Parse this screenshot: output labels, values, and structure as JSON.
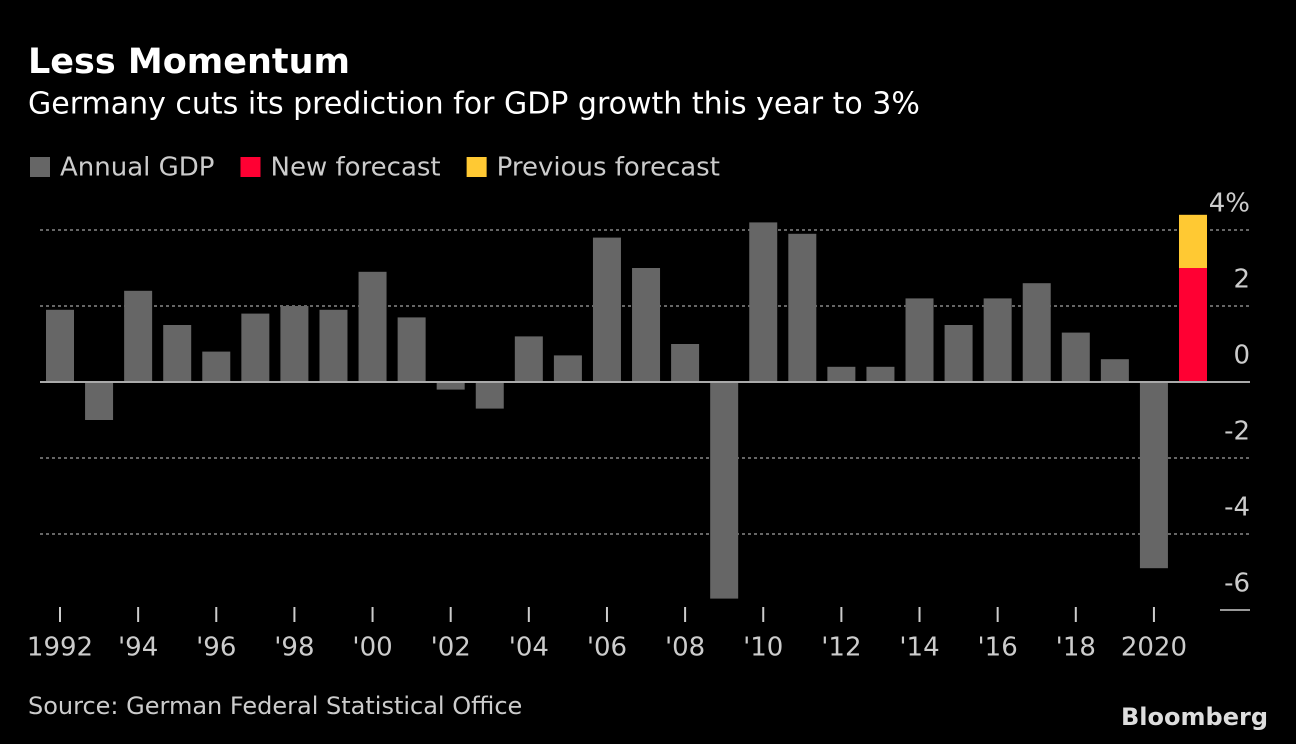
{
  "chart_data": {
    "type": "bar",
    "stacked": true,
    "title": "Less Momentum",
    "subtitle": "Germany cuts its prediction for GDP growth this year to 3%",
    "source": "Source: German Federal Statistical Office",
    "brand": "Bloomberg",
    "categories": [
      "1992",
      null,
      "'94",
      null,
      "'96",
      null,
      "'98",
      null,
      "'00",
      null,
      "'02",
      null,
      "'04",
      null,
      "'06",
      null,
      "'08",
      null,
      "'10",
      null,
      "'12",
      null,
      "'14",
      null,
      "'16",
      null,
      "'18",
      null,
      "2020",
      null
    ],
    "series": [
      {
        "name": "Annual GDP",
        "color": "#666666",
        "values": [
          1.9,
          -1.0,
          2.4,
          1.5,
          0.8,
          1.8,
          2.0,
          1.9,
          2.9,
          1.7,
          -0.2,
          -0.7,
          1.2,
          0.7,
          3.8,
          3.0,
          1.0,
          -5.7,
          4.2,
          3.9,
          0.4,
          0.4,
          2.2,
          1.5,
          2.2,
          2.6,
          1.3,
          0.6,
          -4.9,
          null
        ]
      },
      {
        "name": "New forecast",
        "color": "#ff0033",
        "values": [
          null,
          null,
          null,
          null,
          null,
          null,
          null,
          null,
          null,
          null,
          null,
          null,
          null,
          null,
          null,
          null,
          null,
          null,
          null,
          null,
          null,
          null,
          null,
          null,
          null,
          null,
          null,
          null,
          null,
          3.0
        ]
      },
      {
        "name": "Previous forecast",
        "color": "#ffc933",
        "values": [
          null,
          null,
          null,
          null,
          null,
          null,
          null,
          null,
          null,
          null,
          null,
          null,
          null,
          null,
          null,
          null,
          null,
          null,
          null,
          null,
          null,
          null,
          null,
          null,
          null,
          null,
          null,
          null,
          null,
          1.4
        ]
      }
    ],
    "ylim": [
      -6,
      4
    ],
    "yticks": [
      {
        "value": 4,
        "label": "4%"
      },
      2,
      0,
      -2,
      -4,
      -6
    ],
    "grid": true
  }
}
